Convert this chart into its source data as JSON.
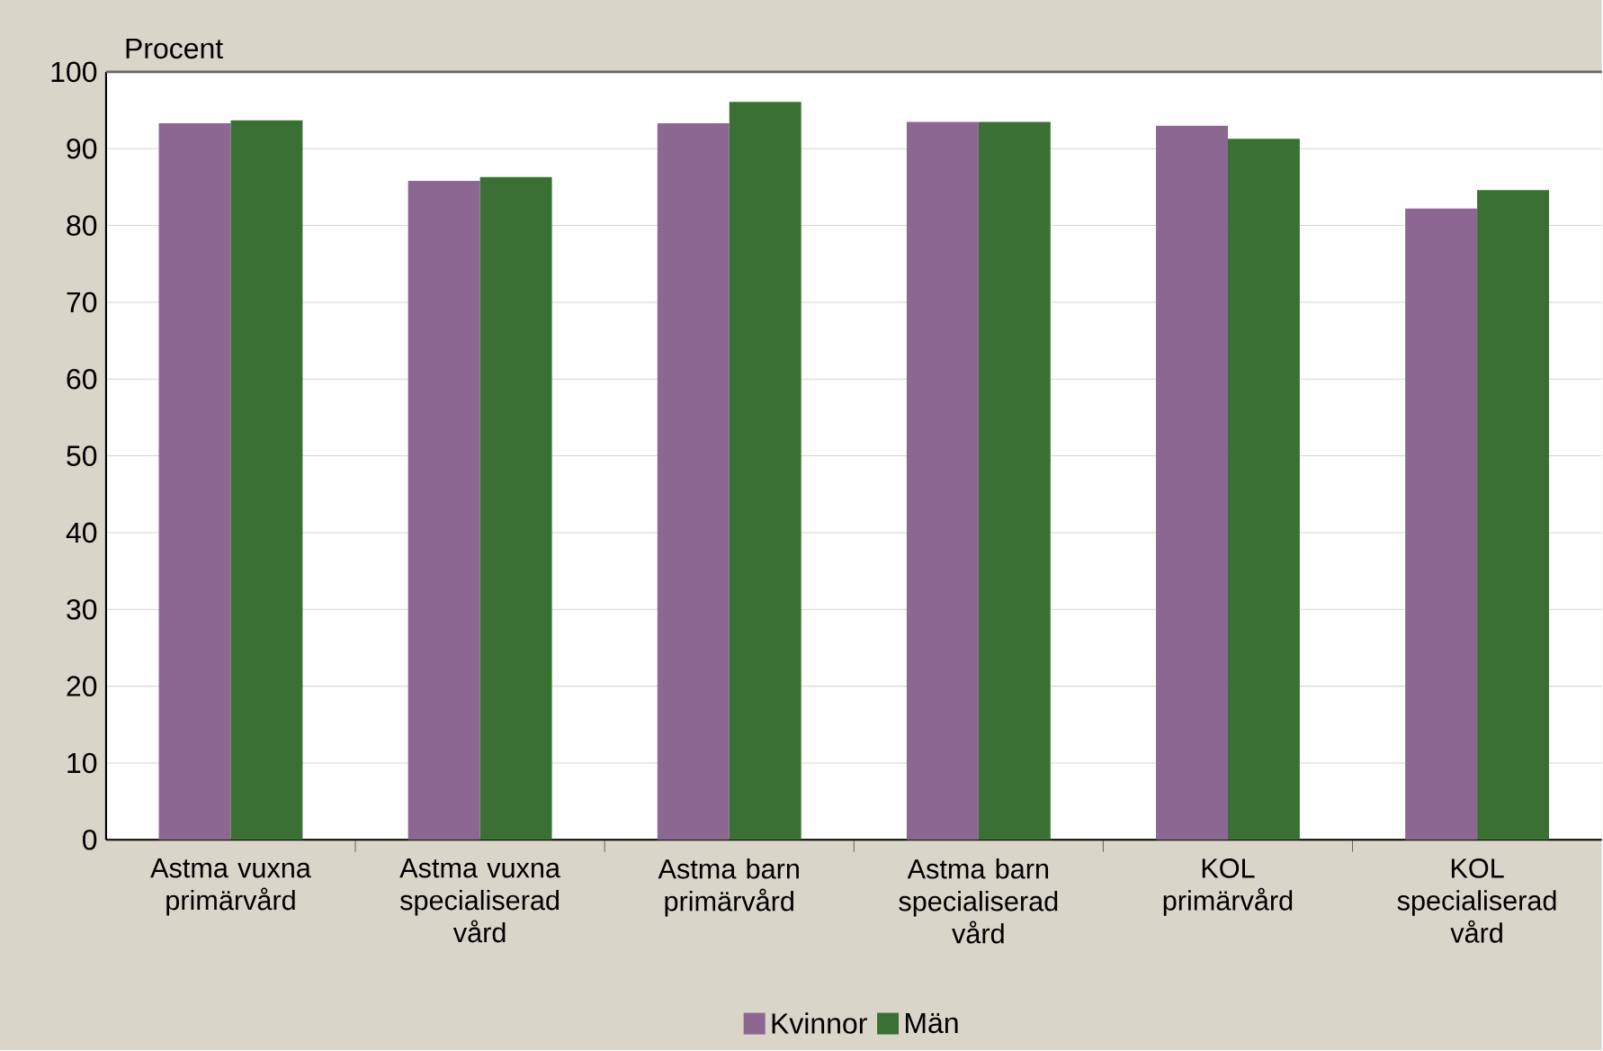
{
  "chart_data": {
    "type": "bar",
    "ylabel": "Procent",
    "categories": [
      "Astma vuxna primärvård",
      "Astma vuxna specialiserad vård",
      "Astma barn primärvård",
      "Astma barn specialiserad vård",
      "KOL primärvård",
      "KOL specialiserad vård"
    ],
    "series": [
      {
        "name": "Kvinnor",
        "color": "#8b6792",
        "values": [
          93.3,
          85.8,
          93.3,
          93.5,
          93.0,
          82.2
        ]
      },
      {
        "name": "Män",
        "color": "#3b7034",
        "values": [
          93.7,
          86.3,
          96.1,
          93.5,
          91.3,
          84.6
        ]
      }
    ],
    "ylim": [
      0,
      100
    ],
    "yticks": [
      0,
      10,
      20,
      30,
      40,
      50,
      60,
      70,
      80,
      90,
      100
    ],
    "grid": "y",
    "legend": "bottom"
  }
}
